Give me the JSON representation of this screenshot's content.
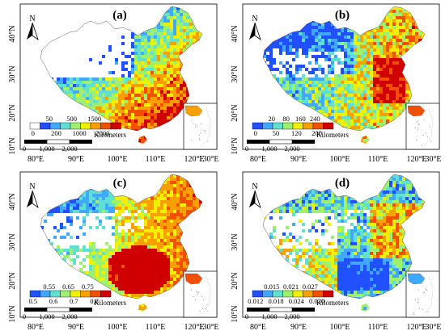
{
  "panels": [
    {
      "id": "a",
      "label": "(a)",
      "theme": "low",
      "legend": {
        "top_ticks": [
          "50",
          "500",
          "1500"
        ],
        "bottom_ticks": [
          "0",
          "200",
          "1000",
          "2000"
        ],
        "colors": [
          "#ffffff",
          "#2050ff",
          "#40a8ff",
          "#60e0d0",
          "#a0f070",
          "#f0f000",
          "#f8a000",
          "#f05000",
          "#d00000"
        ]
      },
      "scale": {
        "ticks": [
          "0",
          "1,000",
          "2,000"
        ],
        "unit": "Kilometers"
      },
      "lat_labels": [
        "40°N",
        "30°N",
        "20°N",
        "10°N"
      ],
      "lon_labels": [
        "80°E",
        "90°E",
        "100°E",
        "110°E",
        "120°E",
        "130°E"
      ],
      "north": "N"
    },
    {
      "id": "b",
      "label": "(b)",
      "theme": "mid",
      "legend": {
        "top_ticks": [
          "20",
          "80",
          "160",
          "240"
        ],
        "bottom_ticks": [
          "0",
          "50",
          "120",
          "200"
        ],
        "colors": [
          "#2050ff",
          "#40a8ff",
          "#60e0d0",
          "#a0f070",
          "#f0f000",
          "#f8a000",
          "#f05000",
          "#d00000"
        ]
      },
      "scale": {
        "ticks": [
          "0",
          "1,000",
          "2,000"
        ],
        "unit": "Kilometers"
      },
      "lat_labels": [
        "40°N",
        "30°N",
        "20°N",
        "10°N"
      ],
      "lon_labels": [
        "80°E",
        "90°E",
        "100°E",
        "110°E",
        "120°E",
        "130°E"
      ],
      "north": "N"
    },
    {
      "id": "c",
      "label": "(c)",
      "theme": "high",
      "legend": {
        "top_ticks": [
          "0.55",
          "0.65",
          "0.75"
        ],
        "bottom_ticks": [
          "0.5",
          "0.6",
          "0.7",
          "0.8"
        ],
        "colors": [
          "#2050ff",
          "#40a8ff",
          "#60e0d0",
          "#a0f070",
          "#f0f000",
          "#f8a000",
          "#f05000",
          "#d00000"
        ]
      },
      "scale": {
        "ticks": [
          "0",
          "1,000",
          "2,000"
        ],
        "unit": "Kilometers"
      },
      "lat_labels": [
        "40°N",
        "30°N",
        "20°N",
        "10°N"
      ],
      "lon_labels": [
        "80°E",
        "90°E",
        "100°E",
        "110°E",
        "120°E",
        "130°E"
      ],
      "north": "N"
    },
    {
      "id": "d",
      "label": "(d)",
      "theme": "east",
      "legend": {
        "top_ticks": [
          "0.015",
          "0.021",
          "0.027"
        ],
        "bottom_ticks": [
          "0.012",
          "0.018",
          "0.024",
          "0.030"
        ],
        "colors": [
          "#2050ff",
          "#40a8ff",
          "#60e0d0",
          "#a0f070",
          "#f0f000",
          "#f8a000",
          "#f05000",
          "#d00000"
        ]
      },
      "scale": {
        "ticks": [
          "0",
          "1,000",
          "2,000"
        ],
        "unit": "Kilometers"
      },
      "lat_labels": [
        "40°N",
        "30°N",
        "20°N",
        "10°N"
      ],
      "lon_labels": [
        "80°E",
        "90°E",
        "100°E",
        "110°E",
        "120°E",
        "130°E"
      ],
      "north": "N"
    }
  ]
}
